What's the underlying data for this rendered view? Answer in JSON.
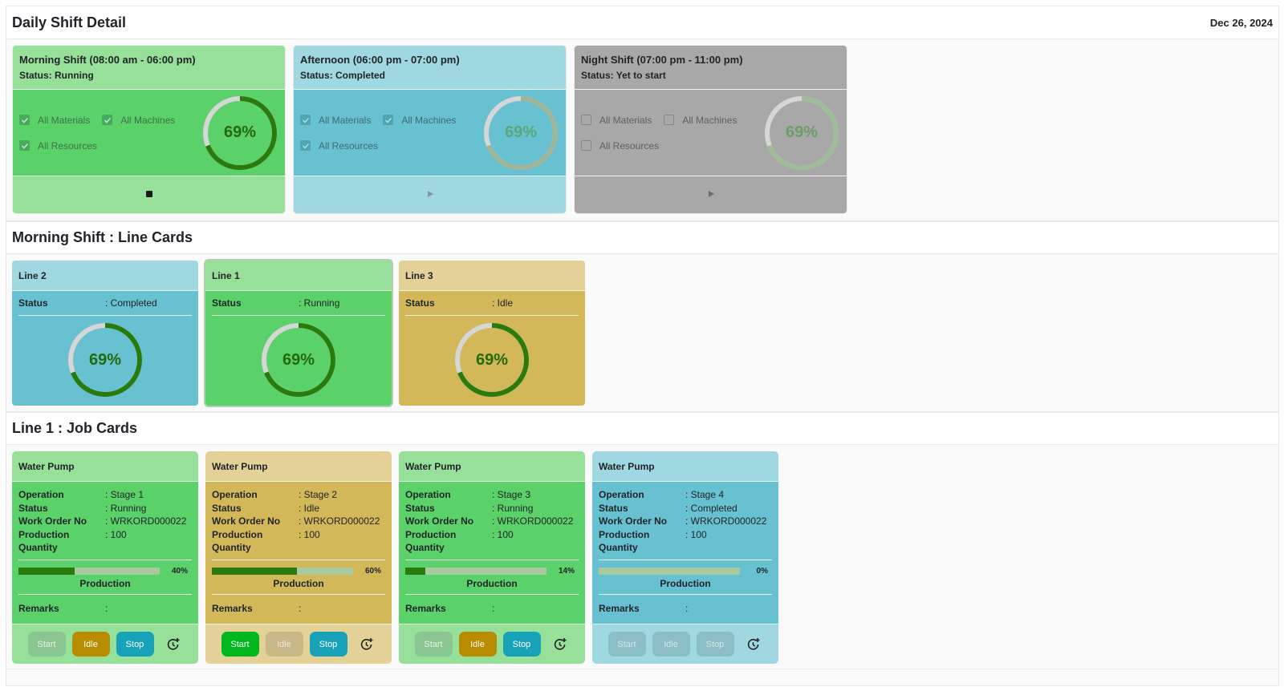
{
  "header": {
    "title": "Daily Shift Detail",
    "date": "Dec 26, 2024"
  },
  "shifts": [
    {
      "title": "Morning Shift (08:00 am - 06:00 pm)",
      "status": "Status: Running",
      "checks": [
        {
          "label": "All Materials",
          "checked": true
        },
        {
          "label": "All Machines",
          "checked": true
        },
        {
          "label": "All Resources",
          "checked": true
        }
      ],
      "progress_percent": 69,
      "progress_label": "69%",
      "action_icon": "stop-icon",
      "colors": {
        "arc": "#2a7a0e",
        "text": "#236b0a"
      }
    },
    {
      "title": "Afternoon (06:00 pm - 07:00 pm)",
      "status": "Status: Completed",
      "checks": [
        {
          "label": "All Materials",
          "checked": true
        },
        {
          "label": "All Machines",
          "checked": true
        },
        {
          "label": "All Resources",
          "checked": true
        }
      ],
      "progress_percent": 69,
      "progress_label": "69%",
      "action_icon": "play-icon",
      "colors": {
        "arc": "#a0b59a",
        "text": "#5aa77a"
      }
    },
    {
      "title": "Night Shift (07:00 pm - 11:00 pm)",
      "status": "Status: Yet to start",
      "checks": [
        {
          "label": "All Materials",
          "checked": false
        },
        {
          "label": "All Machines",
          "checked": false
        },
        {
          "label": "All Resources",
          "checked": false
        }
      ],
      "progress_percent": 69,
      "progress_label": "69%",
      "action_icon": "play-icon",
      "colors": {
        "arc": "#9fbd98",
        "text": "#6b9e66"
      }
    }
  ],
  "line_section": {
    "title": "Morning Shift : Line Cards",
    "status_key": "Status",
    "lines": [
      {
        "name": "Line 2",
        "status": ": Completed",
        "progress_percent": 69,
        "progress_label": "69%"
      },
      {
        "name": "Line 1",
        "status": ": Running",
        "progress_percent": 69,
        "progress_label": "69%",
        "selected": true
      },
      {
        "name": "Line 3",
        "status": ": Idle",
        "progress_percent": 69,
        "progress_label": "69%"
      }
    ]
  },
  "job_section": {
    "title": "Line 1 : Job Cards",
    "keys": {
      "operation": "Operation",
      "status": "Status",
      "work_order": "Work Order No",
      "production": "Production",
      "quantity": "Quantity",
      "remarks": "Remarks"
    },
    "production_label": "Production",
    "buttons": {
      "start": "Start",
      "idle": "Idle",
      "stop": "Stop"
    },
    "jobs": [
      {
        "name": "Water Pump",
        "operation": ": Stage 1",
        "status": ": Running",
        "work_order": ": WRKORD000022",
        "production": ": 100",
        "progress_percent": 40,
        "progress_label": "40%",
        "remarks": ":"
      },
      {
        "name": "Water Pump",
        "operation": ": Stage 2",
        "status": ": Idle",
        "work_order": ": WRKORD000022",
        "production": ": 100",
        "progress_percent": 60,
        "progress_label": "60%",
        "remarks": ":"
      },
      {
        "name": "Water Pump",
        "operation": ": Stage 3",
        "status": ": Running",
        "work_order": ": WRKORD000022",
        "production": ": 100",
        "progress_percent": 14,
        "progress_label": "14%",
        "remarks": ":"
      },
      {
        "name": "Water Pump",
        "operation": ": Stage 4",
        "status": ": Completed",
        "work_order": ": WRKORD000022",
        "production": ": 100",
        "progress_percent": 0,
        "progress_label": "0%",
        "remarks": ":"
      }
    ]
  },
  "colors": {
    "running_light": "#97e09a",
    "running": "#5bd16a",
    "completed_light": "#9fd8e0",
    "completed": "#68c1d1",
    "idle_light": "#e3d198",
    "idle": "#d2b858",
    "yet_to_start": "#a8a8a8",
    "progress_fill": "#2a7a0e",
    "progress_track": "#a9c99f"
  }
}
